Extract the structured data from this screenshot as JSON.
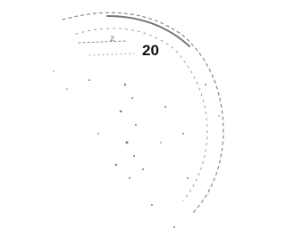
{
  "stamp": {
    "text": "20"
  }
}
